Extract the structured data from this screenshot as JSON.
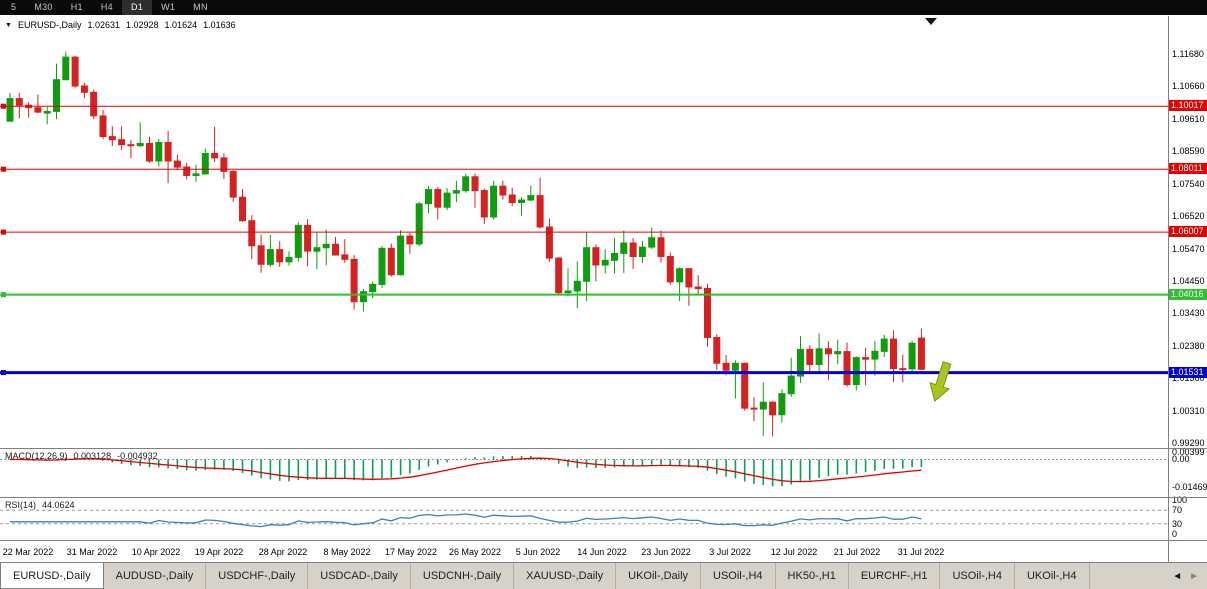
{
  "toolbar": {
    "items": [
      "5",
      "M30",
      "H1",
      "H4",
      "D1",
      "W1",
      "MN"
    ],
    "active": "D1"
  },
  "chart_data": {
    "type": "candlestick",
    "symbol": "EURUSD-",
    "timeframe": "Daily",
    "title": {
      "symbol": "EURUSD-,Daily",
      "open": "1.02631",
      "high": "1.02928",
      "low": "1.01624",
      "close": "1.01636"
    },
    "bull_color": "#0F9D0F",
    "bear_color": "#D42222",
    "arrow_color": "#A8C420",
    "price_axis_labels": [
      "1.11680",
      "1.10660",
      "1.09610",
      "1.08590",
      "1.07540",
      "1.06520",
      "1.05470",
      "1.04450",
      "1.03430",
      "1.02380",
      "1.01360",
      "1.00310",
      "0.99290"
    ],
    "date_labels": [
      "22 Mar 2022",
      "31 Mar 2022",
      "10 Apr 2022",
      "19 Apr 2022",
      "28 Apr 2022",
      "8 May 2022",
      "17 May 2022",
      "26 May 2022",
      "5 Jun 2022",
      "14 Jun 2022",
      "23 Jun 2022",
      "3 Jul 2022",
      "12 Jul 2022",
      "21 Jul 2022",
      "31 Jul 2022"
    ],
    "hlines": [
      {
        "price": 1.10017,
        "label": "1.10017",
        "color": "#E60000",
        "width": 1
      },
      {
        "price": 1.08011,
        "label": "1.08011",
        "color": "#E60000",
        "width": 1
      },
      {
        "price": 1.06007,
        "label": "1.06007",
        "color": "#E60000",
        "width": 1
      },
      {
        "price": 1.04016,
        "label": "1.04016",
        "color": "#2FBF2F",
        "width": 2
      },
      {
        "price": 1.01531,
        "label": "1.01531",
        "color": "#0000D0",
        "width": 3
      }
    ],
    "candles": [
      [
        1.0954,
        1.1044,
        1.0952,
        1.1026
      ],
      [
        1.1026,
        1.1044,
        1.0963,
        1.1005
      ],
      [
        1.1005,
        1.1014,
        1.0965,
        1.0997
      ],
      [
        1.0997,
        1.1039,
        1.0979,
        1.0983
      ],
      [
        1.098,
        1.0999,
        1.0944,
        1.0985
      ],
      [
        1.0985,
        1.1137,
        1.0961,
        1.1086
      ],
      [
        1.1086,
        1.1176,
        1.1084,
        1.1158
      ],
      [
        1.1158,
        1.1162,
        1.106,
        1.1066
      ],
      [
        1.1066,
        1.1076,
        1.1027,
        1.1046
      ],
      [
        1.1046,
        1.1055,
        1.0961,
        1.0971
      ],
      [
        1.0971,
        1.099,
        1.0897,
        1.0905
      ],
      [
        1.0905,
        1.0938,
        1.0874,
        1.0895
      ],
      [
        1.0895,
        1.0938,
        1.0863,
        1.0879
      ],
      [
        1.0879,
        1.0895,
        1.0836,
        1.0876
      ],
      [
        1.0876,
        1.095,
        1.0872,
        1.0883
      ],
      [
        1.0883,
        1.0905,
        1.0821,
        1.0827
      ],
      [
        1.0827,
        1.0897,
        1.0809,
        1.0886
      ],
      [
        1.0886,
        1.0923,
        1.0757,
        1.0827
      ],
      [
        1.0827,
        1.0847,
        1.0798,
        1.0808
      ],
      [
        1.0808,
        1.0821,
        1.0769,
        1.0781
      ],
      [
        1.0781,
        1.0815,
        1.0761,
        1.0786
      ],
      [
        1.0786,
        1.0867,
        1.0783,
        1.0851
      ],
      [
        1.0851,
        1.0936,
        1.0823,
        1.0837
      ],
      [
        1.0837,
        1.0852,
        1.077,
        1.0794
      ],
      [
        1.0794,
        1.0798,
        1.0697,
        1.0712
      ],
      [
        1.0712,
        1.0738,
        1.0633,
        1.0637
      ],
      [
        1.0637,
        1.0655,
        1.0514,
        1.0557
      ],
      [
        1.0557,
        1.0593,
        1.0471,
        1.0498
      ],
      [
        1.0498,
        1.0592,
        1.049,
        1.0545
      ],
      [
        1.0545,
        1.0572,
        1.049,
        1.0506
      ],
      [
        1.0506,
        1.0539,
        1.0494,
        1.052
      ],
      [
        1.052,
        1.0632,
        1.0507,
        1.0622
      ],
      [
        1.0622,
        1.0642,
        1.0492,
        1.054
      ],
      [
        1.054,
        1.0599,
        1.0483,
        1.0551
      ],
      [
        1.0551,
        1.0609,
        1.0495,
        1.0562
      ],
      [
        1.0562,
        1.0585,
        1.0526,
        1.0528
      ],
      [
        1.0528,
        1.0578,
        1.0503,
        1.0514
      ],
      [
        1.0514,
        1.0527,
        1.0354,
        1.0379
      ],
      [
        1.0379,
        1.042,
        1.0348,
        1.0411
      ],
      [
        1.0411,
        1.0443,
        1.039,
        1.0434
      ],
      [
        1.0434,
        1.0556,
        1.0423,
        1.0549
      ],
      [
        1.0549,
        1.0564,
        1.0459,
        1.0465
      ],
      [
        1.0465,
        1.0607,
        1.0462,
        1.0588
      ],
      [
        1.0588,
        1.0598,
        1.0532,
        1.0563
      ],
      [
        1.0563,
        1.0697,
        1.0556,
        1.0691
      ],
      [
        1.0691,
        1.0748,
        1.0661,
        1.0736
      ],
      [
        1.0736,
        1.0744,
        1.0641,
        1.068
      ],
      [
        1.068,
        1.0741,
        1.0671,
        1.0725
      ],
      [
        1.0725,
        1.0764,
        1.0696,
        1.0733
      ],
      [
        1.0733,
        1.0786,
        1.0726,
        1.0777
      ],
      [
        1.0777,
        1.0787,
        1.0678,
        1.0733
      ],
      [
        1.0733,
        1.0739,
        1.0627,
        1.0649
      ],
      [
        1.0649,
        1.0764,
        1.0641,
        1.0747
      ],
      [
        1.0747,
        1.0765,
        1.0704,
        1.0719
      ],
      [
        1.0719,
        1.0742,
        1.0684,
        1.0695
      ],
      [
        1.0695,
        1.0712,
        1.0653,
        1.0703
      ],
      [
        1.0703,
        1.0749,
        1.0698,
        1.0717
      ],
      [
        1.0717,
        1.0774,
        1.0612,
        1.0617
      ],
      [
        1.0617,
        1.0643,
        1.0506,
        1.0518
      ],
      [
        1.0518,
        1.0521,
        1.0399,
        1.0408
      ],
      [
        1.0408,
        1.0485,
        1.0397,
        1.0413
      ],
      [
        1.0413,
        1.0508,
        1.0359,
        1.0444
      ],
      [
        1.0444,
        1.0601,
        1.0381,
        1.0551
      ],
      [
        1.0551,
        1.0561,
        1.0444,
        1.0496
      ],
      [
        1.0496,
        1.0546,
        1.0469,
        1.0511
      ],
      [
        1.0511,
        1.0582,
        1.0469,
        1.0533
      ],
      [
        1.0533,
        1.0606,
        1.047,
        1.0566
      ],
      [
        1.0566,
        1.0582,
        1.0483,
        1.0523
      ],
      [
        1.0523,
        1.0572,
        1.0503,
        1.0553
      ],
      [
        1.0553,
        1.0615,
        1.0547,
        1.0583
      ],
      [
        1.0583,
        1.0606,
        1.0503,
        1.0523
      ],
      [
        1.0523,
        1.0536,
        1.0433,
        1.0442
      ],
      [
        1.0442,
        1.0489,
        1.0381,
        1.0484
      ],
      [
        1.0484,
        1.0486,
        1.0366,
        1.0426
      ],
      [
        1.0426,
        1.0463,
        1.0403,
        1.0421
      ],
      [
        1.0421,
        1.0436,
        1.0236,
        1.0265
      ],
      [
        1.0265,
        1.0275,
        1.0162,
        1.0183
      ],
      [
        1.0183,
        1.0209,
        1.0144,
        1.0161
      ],
      [
        1.0161,
        1.0192,
        1.0071,
        1.0183
      ],
      [
        1.0183,
        1.0185,
        1.0032,
        1.004
      ],
      [
        1.004,
        1.0075,
        0.9998,
        1.0037
      ],
      [
        1.0037,
        1.0122,
        0.9952,
        1.0059
      ],
      [
        1.0059,
        1.0062,
        0.995,
        1.0019
      ],
      [
        1.0019,
        1.01,
        0.9994,
        1.0086
      ],
      [
        1.0086,
        1.0201,
        1.0076,
        1.0142
      ],
      [
        1.0142,
        1.0269,
        1.0121,
        1.0227
      ],
      [
        1.0227,
        1.024,
        1.0155,
        1.0179
      ],
      [
        1.0179,
        1.0278,
        1.0153,
        1.0229
      ],
      [
        1.0229,
        1.0253,
        1.013,
        1.0213
      ],
      [
        1.0213,
        1.0258,
        1.018,
        1.022
      ],
      [
        1.022,
        1.0249,
        1.0108,
        1.0115
      ],
      [
        1.0115,
        1.0205,
        1.0097,
        1.0201
      ],
      [
        1.0201,
        1.0232,
        1.0113,
        1.0196
      ],
      [
        1.0196,
        1.0254,
        1.0144,
        1.0221
      ],
      [
        1.0221,
        1.0274,
        1.0203,
        1.026
      ],
      [
        1.026,
        1.0288,
        1.0123,
        1.0166
      ],
      [
        1.0166,
        1.021,
        1.0122,
        1.0165
      ],
      [
        1.0165,
        1.0254,
        1.0151,
        1.0247
      ],
      [
        1.02631,
        1.02928,
        1.01624,
        1.01636
      ]
    ]
  },
  "macd": {
    "label": "MACD(12,26,9)",
    "value_main": "0.003128",
    "value_signal": "-0.004932",
    "hist_color": "#00A550",
    "signal_color": "#E60000",
    "axis": [
      {
        "t": "0.00399",
        "v": 0.00399
      },
      {
        "t": "0.00",
        "v": 0
      },
      {
        "t": "-0.01469",
        "v": -0.01469
      }
    ]
  },
  "rsi": {
    "label": "RSI(14)",
    "value": "44.0624",
    "color": "#3E7FC1",
    "levels": [
      70,
      30
    ],
    "axis": [
      {
        "t": "100",
        "v": 100
      },
      {
        "t": "70",
        "v": 70
      },
      {
        "t": "30",
        "v": 30
      },
      {
        "t": "0",
        "v": 0
      }
    ]
  },
  "tabs": {
    "items": [
      {
        "label": "EURUSD-,Daily",
        "active": true
      },
      {
        "label": "AUDUSD-,Daily",
        "active": false
      },
      {
        "label": "USDCHF-,Daily",
        "active": false
      },
      {
        "label": "USDCAD-,Daily",
        "active": false
      },
      {
        "label": "USDCNH-,Daily",
        "active": false
      },
      {
        "label": "XAUUSD-,Daily",
        "active": false
      },
      {
        "label": "UKOil-,Daily",
        "active": false
      },
      {
        "label": "USOil-,H4",
        "active": false
      },
      {
        "label": "HK50-,H1",
        "active": false
      },
      {
        "label": "EURCHF-,H1",
        "active": false
      },
      {
        "label": "USOil-,H4",
        "active": false
      },
      {
        "label": "UKOil-,H4",
        "active": false
      }
    ],
    "scroll_left": "◄",
    "scroll_right": "►"
  }
}
